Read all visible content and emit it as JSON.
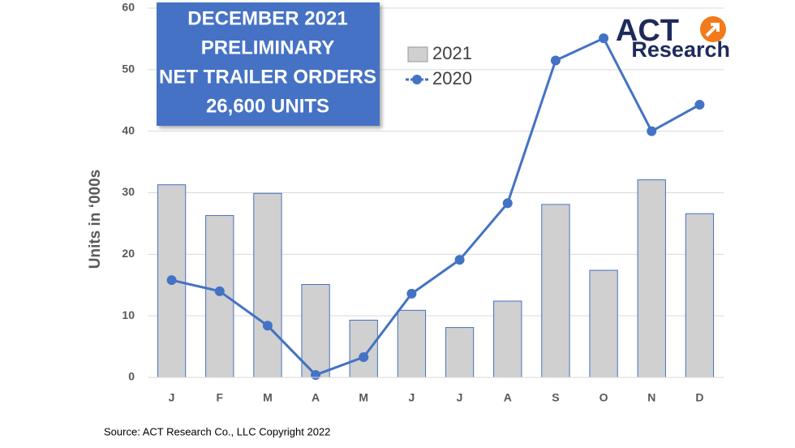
{
  "chart_data": {
    "type": "bar-line",
    "title": [
      "DECEMBER 2021",
      "PRELIMINARY",
      "NET TRAILER ORDERS",
      "26,600 UNITS"
    ],
    "y_label": "Units in ‘000s",
    "categories": [
      "J",
      "F",
      "M",
      "A",
      "M",
      "J",
      "J",
      "A",
      "S",
      "O",
      "N",
      "D"
    ],
    "series": [
      {
        "name": "2021",
        "kind": "bar",
        "color": "#d0d0d0",
        "edge": "#4472c4",
        "values": [
          31.3,
          26.3,
          29.9,
          15.1,
          9.3,
          10.9,
          8.1,
          12.4,
          28.1,
          17.4,
          32.1,
          26.6
        ]
      },
      {
        "name": "2020",
        "kind": "line",
        "color": "#4472c4",
        "values": [
          15.8,
          14.0,
          8.4,
          0.4,
          3.3,
          13.6,
          19.1,
          28.3,
          51.5,
          55.1,
          40.0,
          44.3
        ]
      }
    ],
    "ylim": [
      0,
      60
    ],
    "yticks": [
      0,
      10,
      20,
      30,
      40,
      50,
      60
    ],
    "grid": true
  },
  "logo": {
    "line1": "ACT",
    "line2": "Research"
  },
  "source": "Source: ACT Research Co., LLC  Copyright 2022"
}
